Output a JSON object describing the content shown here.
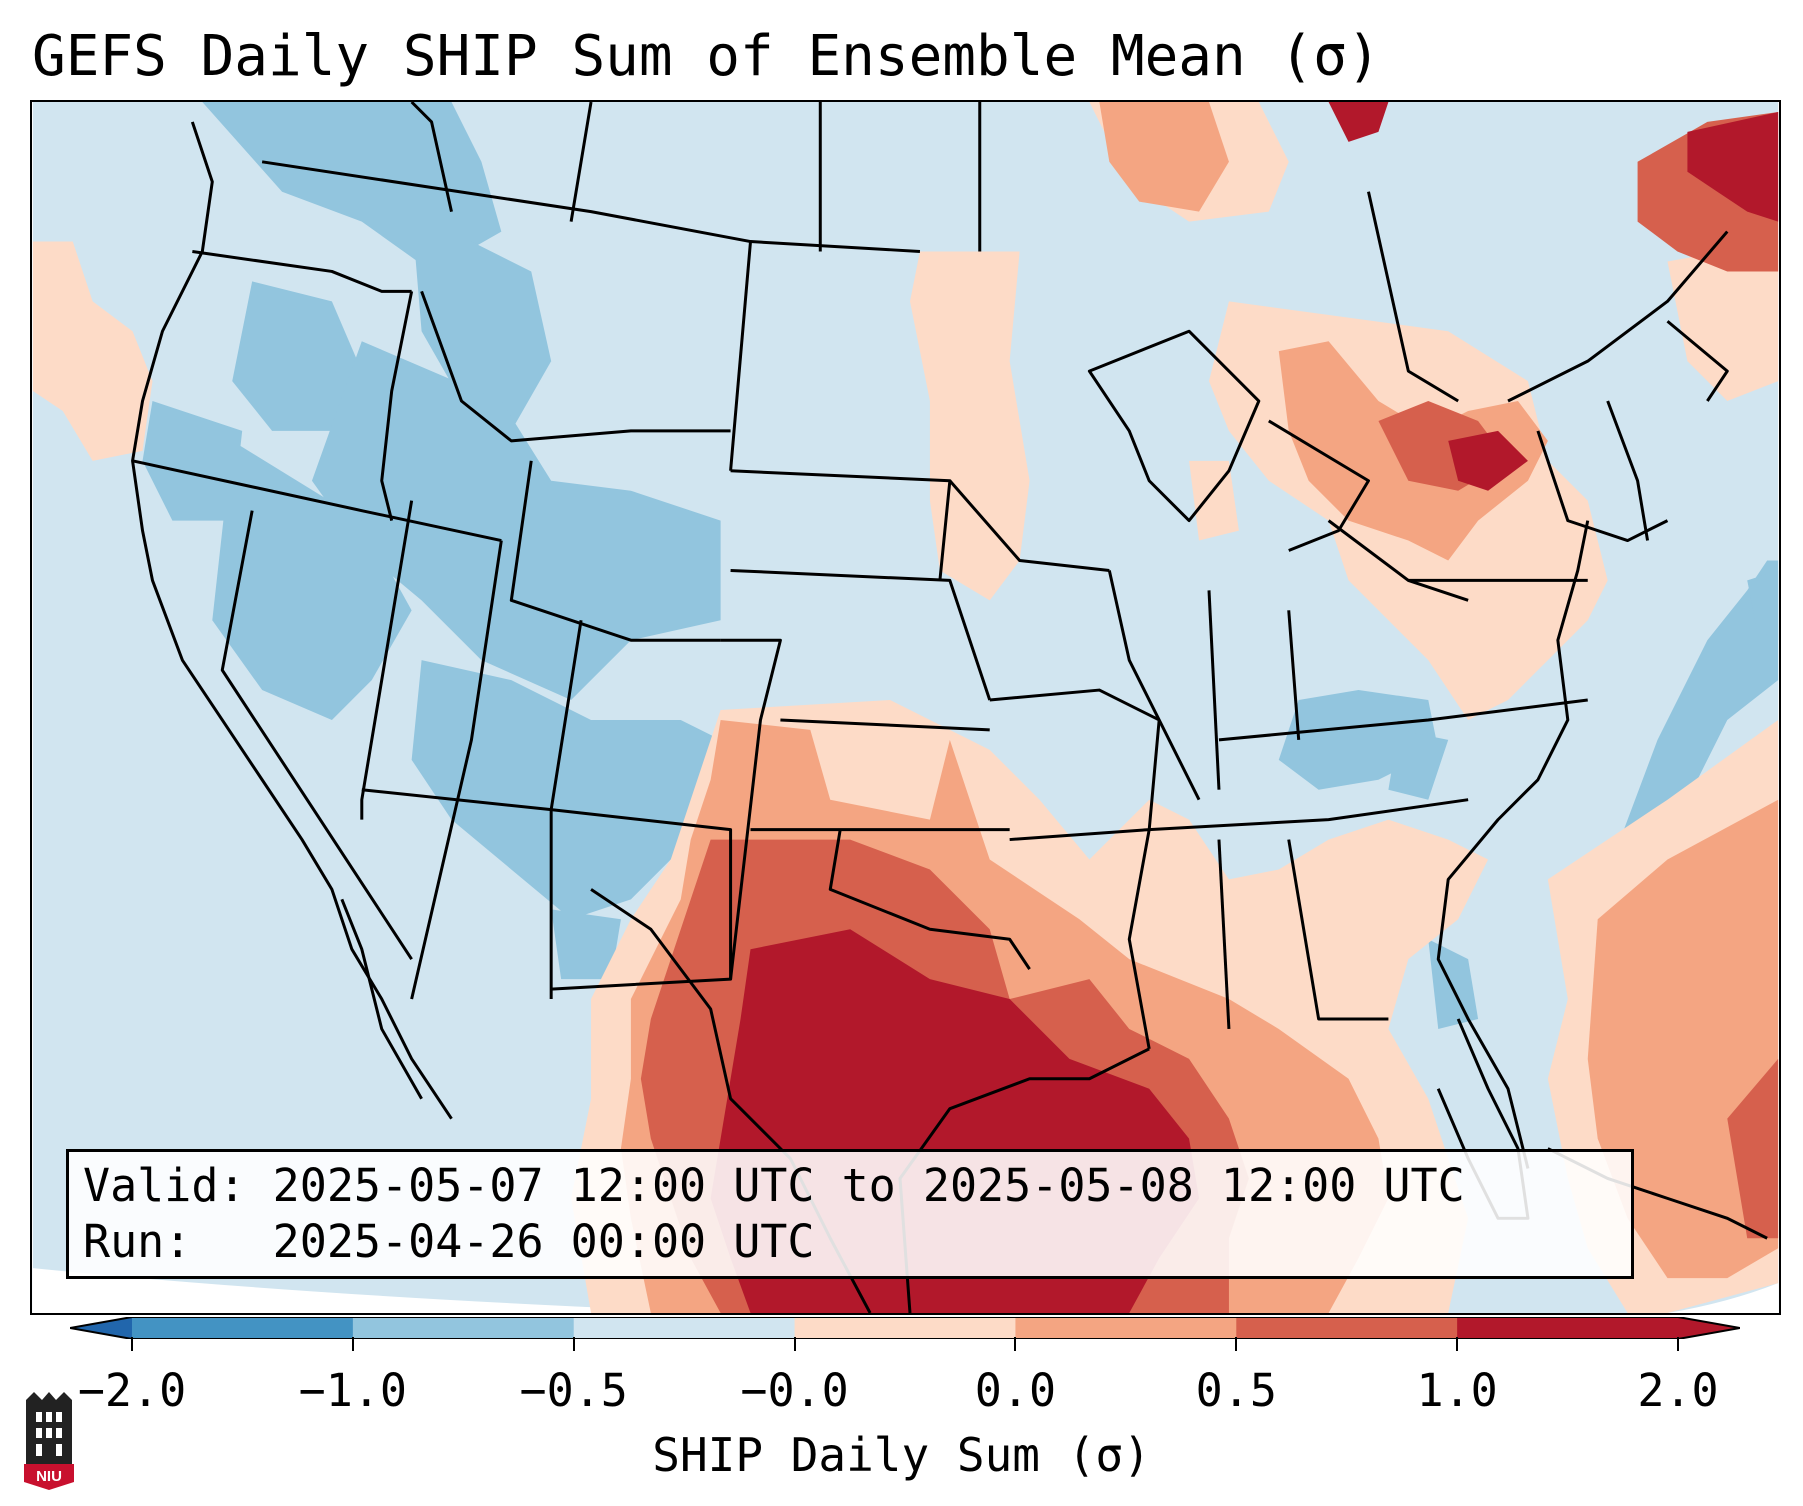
{
  "title": "GEFS Daily SHIP Sum of Ensemble Mean (σ)",
  "info": {
    "valid_line": "Valid: 2025-05-07 12:00 UTC to 2025-05-08 12:00 UTC",
    "run_line": "Run:   2025-04-26 00:00 UTC"
  },
  "colorbar": {
    "label": "SHIP Daily Sum (σ)",
    "ticks": [
      "−2.0",
      "−1.0",
      "−0.5",
      "−0.0",
      "0.0",
      "0.5",
      "1.0",
      "2.0"
    ],
    "colors": [
      "#4393c3",
      "#92c5de",
      "#d1e5f0",
      "#fddbc7",
      "#f4a582",
      "#d6604d",
      "#b2182b"
    ],
    "extend": "both"
  },
  "logo": {
    "text": "NIU",
    "colors": {
      "dark": "#222222",
      "red": "#c8102e"
    }
  },
  "map": {
    "region": "CONUS",
    "field_colors": {
      "neg_1_to_neg_05": "#92c5de",
      "neg_05_to_0": "#d1e5f0",
      "pos_0_to_05": "#fddbc7",
      "pos_05_to_1": "#f4a582",
      "pos_1_to_2": "#d6604d",
      "pos_gt_2": "#b2182b"
    }
  }
}
